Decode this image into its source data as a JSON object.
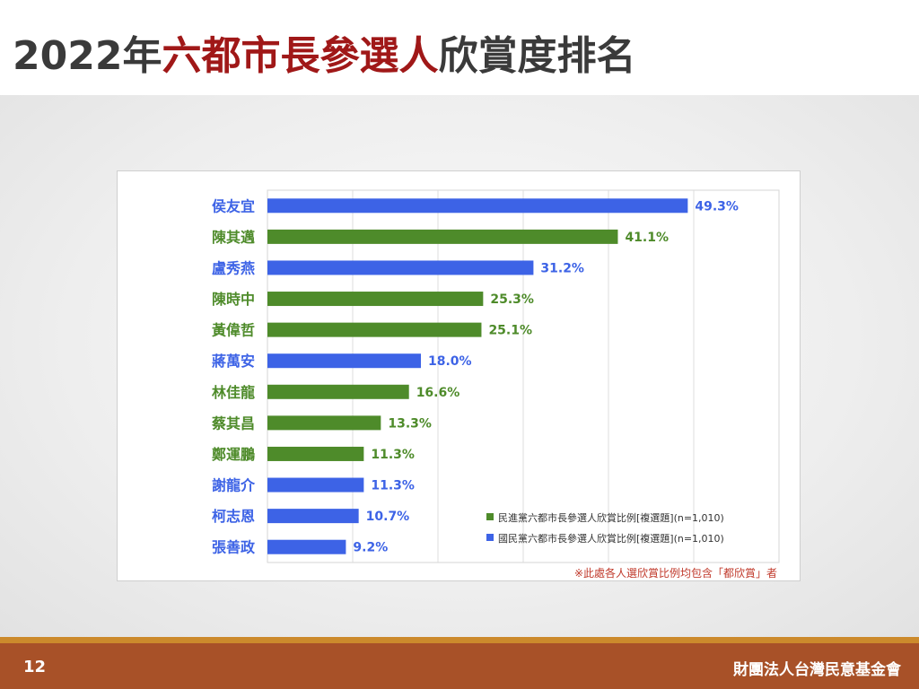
{
  "slide": {
    "title_part1": "2022年",
    "title_accent": "六都市長參選人",
    "title_part2": "欣賞度排名",
    "page_number": "12",
    "organization": "財團法人台灣民意基金會"
  },
  "colors": {
    "dpp": "#4e8b2a",
    "kmt": "#3d63e6",
    "title_accent": "#a01818",
    "footnote": "#c0392b"
  },
  "chart_data": {
    "type": "bar",
    "orientation": "horizontal",
    "categories": [
      "侯友宜",
      "陳其邁",
      "盧秀燕",
      "陳時中",
      "黃偉哲",
      "蔣萬安",
      "林佳龍",
      "蔡其昌",
      "鄭運鵬",
      "謝龍介",
      "柯志恩",
      "張善政"
    ],
    "values": [
      49.3,
      41.1,
      31.2,
      25.3,
      25.1,
      18.0,
      16.6,
      13.3,
      11.3,
      11.3,
      10.7,
      9.2
    ],
    "value_labels": [
      "49.3%",
      "41.1%",
      "31.2%",
      "25.3%",
      "25.1%",
      "18.0%",
      "16.6%",
      "13.3%",
      "11.3%",
      "11.3%",
      "10.7%",
      "9.2%"
    ],
    "party": [
      "kmt",
      "dpp",
      "kmt",
      "dpp",
      "dpp",
      "kmt",
      "dpp",
      "dpp",
      "dpp",
      "kmt",
      "kmt",
      "kmt"
    ],
    "xlim": [
      0,
      60
    ],
    "grid": true,
    "legend_position": "bottom-right",
    "legend": [
      {
        "key": "dpp",
        "label": "民進黨六都市長參選人欣賞比例[複選題](n=1,010)"
      },
      {
        "key": "kmt",
        "label": "國民黨六都市長參選人欣賞比例[複選題](n=1,010)"
      }
    ],
    "footnote": "※此處各人選欣賞比例均包含「都欣賞」者"
  }
}
